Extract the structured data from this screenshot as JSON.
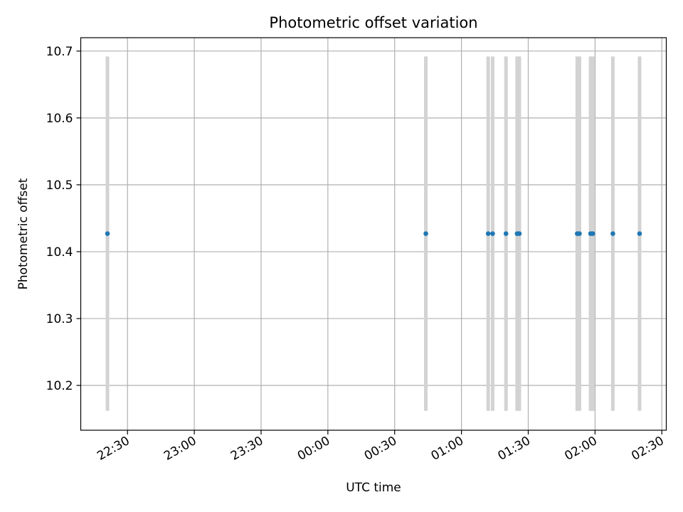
{
  "chart_data": {
    "type": "scatter",
    "title": "Photometric offset variation",
    "xlabel": "UTC time",
    "ylabel": "Photometric offset",
    "x_is_time": true,
    "xlim": [
      "22:09",
      "02:32"
    ],
    "ylim": [
      10.133,
      10.72
    ],
    "x_ticks": [
      "22:30",
      "23:00",
      "23:30",
      "00:00",
      "00:30",
      "01:00",
      "01:30",
      "02:00",
      "02:30"
    ],
    "y_ticks": [
      10.2,
      10.3,
      10.4,
      10.5,
      10.6,
      10.7
    ],
    "grid": true,
    "colors": {
      "points": "#1f77b4",
      "errorbars": "#d3d3d3",
      "grid": "#b0b0b0"
    },
    "series": [
      {
        "x": [
          "22:21",
          "00:44",
          "01:12",
          "01:14",
          "01:20",
          "01:25",
          "01:26",
          "01:52",
          "01:53",
          "01:58",
          "01:59",
          "02:08",
          "02:20"
        ],
        "y": [
          10.427,
          10.427,
          10.427,
          10.427,
          10.427,
          10.427,
          10.427,
          10.427,
          10.427,
          10.427,
          10.427,
          10.427,
          10.427
        ],
        "yerr": [
          0.265,
          0.265,
          0.265,
          0.265,
          0.265,
          0.265,
          0.265,
          0.265,
          0.265,
          0.265,
          0.265,
          0.265,
          0.265
        ]
      }
    ]
  }
}
